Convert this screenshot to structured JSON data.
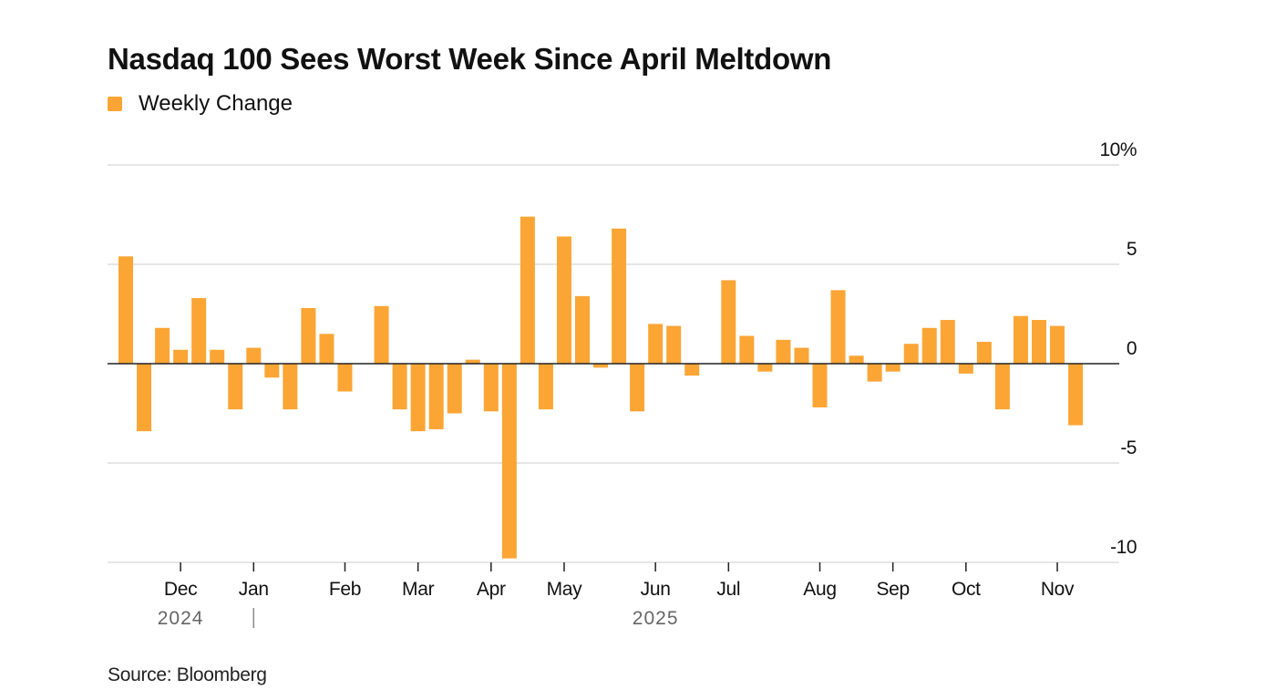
{
  "chart_data": {
    "type": "bar",
    "title": "Nasdaq 100 Sees Worst Week Since April Meltdown",
    "legend": {
      "label": "Weekly Change",
      "color": "#fba535",
      "placement": "top-left"
    },
    "source": "Source: Bloomberg",
    "series": [
      {
        "name": "Weekly Change",
        "values": [
          5.4,
          -3.4,
          1.8,
          0.7,
          3.3,
          0.7,
          -2.3,
          0.8,
          -0.7,
          -2.3,
          2.8,
          1.5,
          -1.4,
          0,
          2.9,
          -2.3,
          -3.4,
          -3.3,
          -2.5,
          0.2,
          -2.4,
          -9.8,
          7.4,
          -2.3,
          6.4,
          3.4,
          -0.2,
          6.8,
          -2.4,
          2.0,
          1.9,
          -0.6,
          0,
          4.2,
          1.4,
          -0.4,
          1.2,
          0.8,
          -2.2,
          3.7,
          0.4,
          -0.9,
          -0.4,
          1.0,
          1.8,
          2.2,
          -0.5,
          1.1,
          -2.3,
          2.4,
          2.2,
          1.9,
          -3.1
        ]
      }
    ],
    "y_axis": {
      "range": [
        -10,
        10
      ],
      "ticks": [
        10,
        5,
        0,
        -5,
        -10
      ],
      "tick_labels": [
        "10%",
        "5",
        "0",
        "-5",
        "-10"
      ],
      "placement": "right"
    },
    "x_axis": {
      "months": [
        {
          "label": "Dec",
          "bar_index": 3
        },
        {
          "label": "Jan",
          "bar_index": 7
        },
        {
          "label": "Feb",
          "bar_index": 12
        },
        {
          "label": "Mar",
          "bar_index": 16
        },
        {
          "label": "Apr",
          "bar_index": 20
        },
        {
          "label": "May",
          "bar_index": 24
        },
        {
          "label": "Jun",
          "bar_index": 29
        },
        {
          "label": "Jul",
          "bar_index": 33
        },
        {
          "label": "Aug",
          "bar_index": 38
        },
        {
          "label": "Sep",
          "bar_index": 42
        },
        {
          "label": "Oct",
          "bar_index": 46
        },
        {
          "label": "Nov",
          "bar_index": 51
        }
      ],
      "years": [
        {
          "label": "2024",
          "bar_index": 3
        },
        {
          "label": "2025",
          "bar_index": 29
        }
      ],
      "year_divider_bar_index": 7
    },
    "grid": true
  }
}
